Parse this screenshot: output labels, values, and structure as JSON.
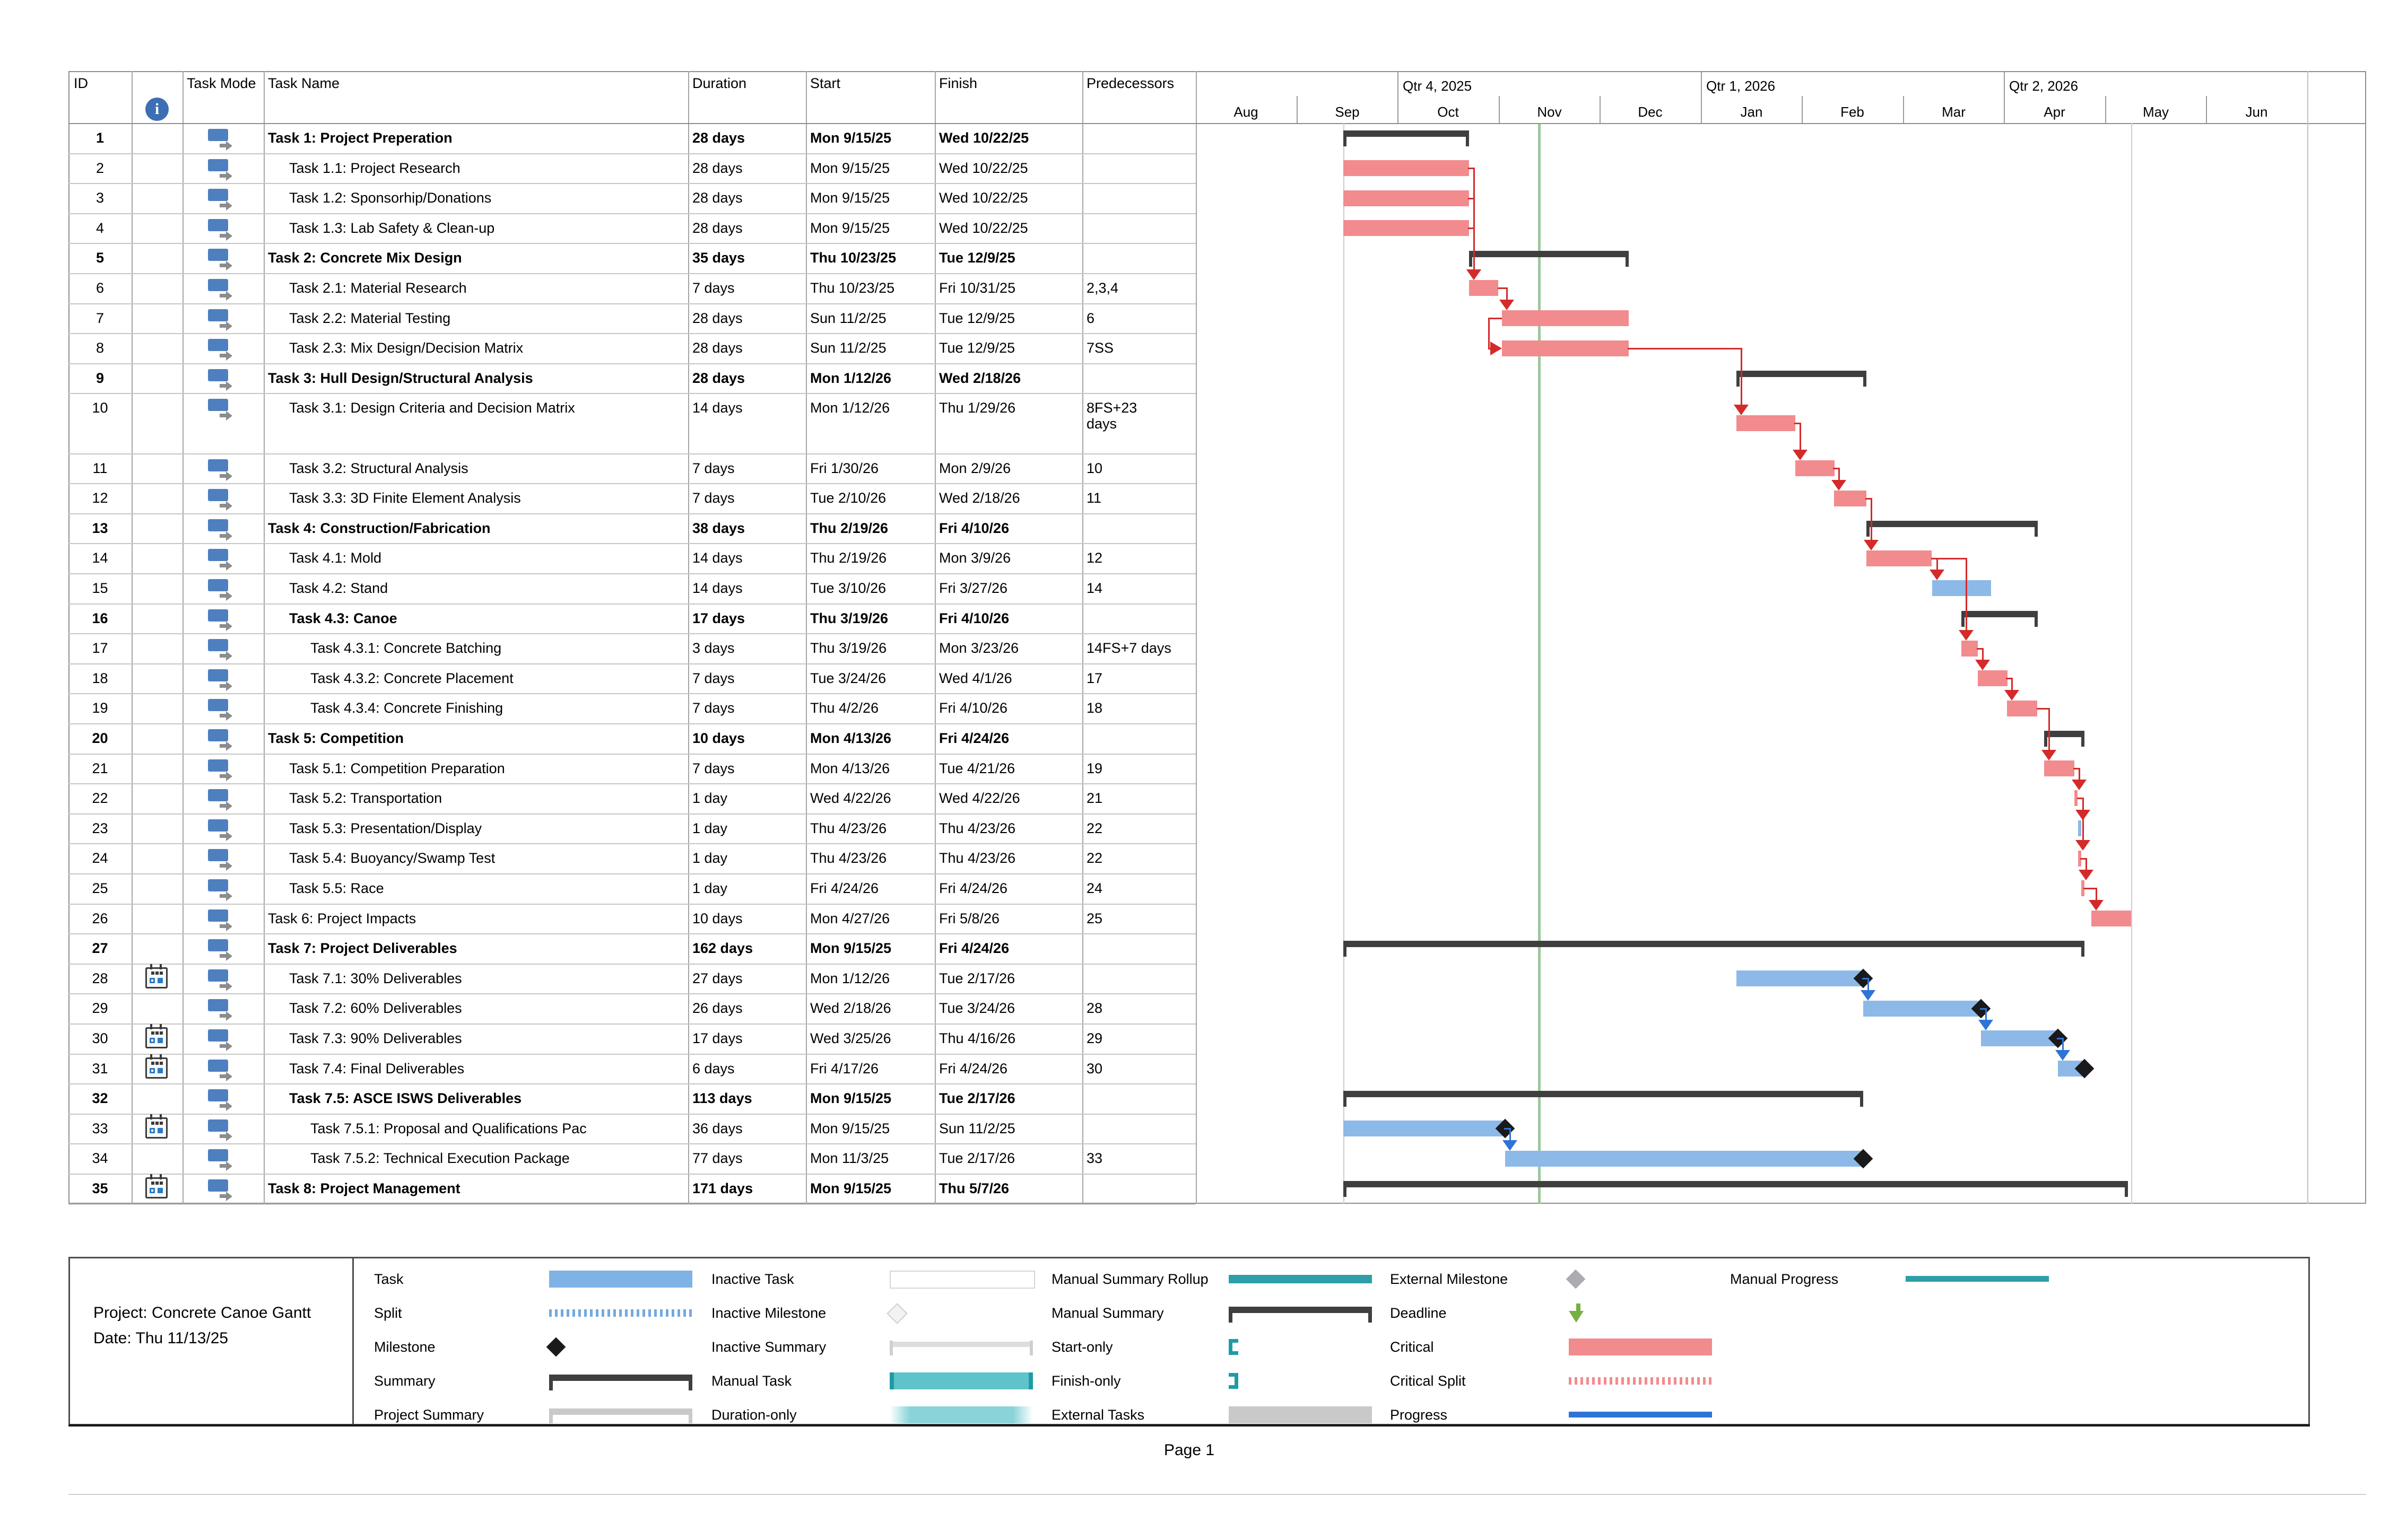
{
  "page": {
    "footer": "Page 1"
  },
  "project_info": {
    "line1": "Project: Concrete Canoe Gantt",
    "line2": "Date: Thu 11/13/25"
  },
  "table": {
    "headers": {
      "id": "ID",
      "info": "info-indicator-column",
      "task_mode": "Task Mode",
      "name": "Task Name",
      "duration": "Duration",
      "start": "Start",
      "finish": "Finish",
      "predecessors": "Predecessors"
    }
  },
  "timeline": {
    "months": [
      "Aug",
      "Sep",
      "Oct",
      "Nov",
      "Dec",
      "Jan",
      "Feb",
      "Mar",
      "Apr",
      "May",
      "Jun"
    ],
    "quarters": [
      {
        "label": "Qtr 4, 2025",
        "month_index": 2
      },
      {
        "label": "Qtr 1, 2026",
        "month_index": 5
      },
      {
        "label": "Qtr 2, 2026",
        "month_index": 8
      }
    ],
    "status_date": "11/13/25",
    "project_start": "9/15/25",
    "project_finish": "5/8/26"
  },
  "tasks": [
    {
      "id": 1,
      "name": "Task 1: Project Preperation",
      "indent": 0,
      "bold": true,
      "duration": "28 days",
      "start": "Mon 9/15/25",
      "finish": "Wed 10/22/25",
      "pred": "",
      "bar": "summary"
    },
    {
      "id": 2,
      "name": "Task 1.1: Project Research",
      "indent": 1,
      "bold": false,
      "duration": "28 days",
      "start": "Mon 9/15/25",
      "finish": "Wed 10/22/25",
      "pred": "",
      "bar": "critical"
    },
    {
      "id": 3,
      "name": "Task 1.2: Sponsorhip/Donations",
      "indent": 1,
      "bold": false,
      "duration": "28 days",
      "start": "Mon 9/15/25",
      "finish": "Wed 10/22/25",
      "pred": "",
      "bar": "critical"
    },
    {
      "id": 4,
      "name": "Task 1.3: Lab Safety & Clean-up",
      "indent": 1,
      "bold": false,
      "duration": "28 days",
      "start": "Mon 9/15/25",
      "finish": "Wed 10/22/25",
      "pred": "",
      "bar": "critical"
    },
    {
      "id": 5,
      "name": "Task 2: Concrete Mix Design",
      "indent": 0,
      "bold": true,
      "duration": "35 days",
      "start": "Thu 10/23/25",
      "finish": "Tue 12/9/25",
      "pred": "",
      "bar": "summary"
    },
    {
      "id": 6,
      "name": "Task 2.1: Material Research",
      "indent": 1,
      "bold": false,
      "duration": "7 days",
      "start": "Thu 10/23/25",
      "finish": "Fri 10/31/25",
      "pred": "2,3,4",
      "bar": "critical"
    },
    {
      "id": 7,
      "name": "Task 2.2: Material Testing",
      "indent": 1,
      "bold": false,
      "duration": "28 days",
      "start": "Sun 11/2/25",
      "finish": "Tue 12/9/25",
      "pred": "6",
      "bar": "critical"
    },
    {
      "id": 8,
      "name": "Task 2.3: Mix Design/Decision Matrix",
      "indent": 1,
      "bold": false,
      "duration": "28 days",
      "start": "Sun 11/2/25",
      "finish": "Tue 12/9/25",
      "pred": "7SS",
      "bar": "critical"
    },
    {
      "id": 9,
      "name": "Task 3: Hull Design/Structural Analysis",
      "indent": 0,
      "bold": true,
      "duration": "28 days",
      "start": "Mon 1/12/26",
      "finish": "Wed 2/18/26",
      "pred": "",
      "bar": "summary"
    },
    {
      "id": 10,
      "name": "Task 3.1: Design Criteria and Decision Matrix",
      "indent": 1,
      "bold": false,
      "duration": "14 days",
      "start": "Mon 1/12/26",
      "finish": "Thu 1/29/26",
      "pred": "8FS+23 days",
      "bar": "critical",
      "tall": true
    },
    {
      "id": 11,
      "name": "Task 3.2: Structural Analysis",
      "indent": 1,
      "bold": false,
      "duration": "7 days",
      "start": "Fri 1/30/26",
      "finish": "Mon 2/9/26",
      "pred": "10",
      "bar": "critical"
    },
    {
      "id": 12,
      "name": "Task 3.3: 3D Finite Element Analysis",
      "indent": 1,
      "bold": false,
      "duration": "7 days",
      "start": "Tue 2/10/26",
      "finish": "Wed 2/18/26",
      "pred": "11",
      "bar": "critical"
    },
    {
      "id": 13,
      "name": "Task 4: Construction/Fabrication",
      "indent": 0,
      "bold": true,
      "duration": "38 days",
      "start": "Thu 2/19/26",
      "finish": "Fri 4/10/26",
      "pred": "",
      "bar": "summary"
    },
    {
      "id": 14,
      "name": "Task 4.1: Mold",
      "indent": 1,
      "bold": false,
      "duration": "14 days",
      "start": "Thu 2/19/26",
      "finish": "Mon 3/9/26",
      "pred": "12",
      "bar": "critical"
    },
    {
      "id": 15,
      "name": "Task 4.2: Stand",
      "indent": 1,
      "bold": false,
      "duration": "14 days",
      "start": "Tue 3/10/26",
      "finish": "Fri 3/27/26",
      "pred": "14",
      "bar": "task"
    },
    {
      "id": 16,
      "name": "Task 4.3: Canoe",
      "indent": 1,
      "bold": true,
      "duration": "17 days",
      "start": "Thu 3/19/26",
      "finish": "Fri 4/10/26",
      "pred": "",
      "bar": "summary"
    },
    {
      "id": 17,
      "name": "Task 4.3.1: Concrete Batching",
      "indent": 2,
      "bold": false,
      "duration": "3 days",
      "start": "Thu 3/19/26",
      "finish": "Mon 3/23/26",
      "pred": "14FS+7 days",
      "bar": "critical"
    },
    {
      "id": 18,
      "name": "Task 4.3.2: Concrete Placement",
      "indent": 2,
      "bold": false,
      "duration": "7 days",
      "start": "Tue 3/24/26",
      "finish": "Wed 4/1/26",
      "pred": "17",
      "bar": "critical"
    },
    {
      "id": 19,
      "name": "Task 4.3.4: Concrete Finishing",
      "indent": 2,
      "bold": false,
      "duration": "7 days",
      "start": "Thu 4/2/26",
      "finish": "Fri 4/10/26",
      "pred": "18",
      "bar": "critical"
    },
    {
      "id": 20,
      "name": "Task 5: Competition",
      "indent": 0,
      "bold": true,
      "duration": "10 days",
      "start": "Mon 4/13/26",
      "finish": "Fri 4/24/26",
      "pred": "",
      "bar": "summary"
    },
    {
      "id": 21,
      "name": "Task 5.1: Competition Preparation",
      "indent": 1,
      "bold": false,
      "duration": "7 days",
      "start": "Mon 4/13/26",
      "finish": "Tue 4/21/26",
      "pred": "19",
      "bar": "critical"
    },
    {
      "id": 22,
      "name": "Task 5.2: Transportation",
      "indent": 1,
      "bold": false,
      "duration": "1 day",
      "start": "Wed 4/22/26",
      "finish": "Wed 4/22/26",
      "pred": "21",
      "bar": "critical"
    },
    {
      "id": 23,
      "name": "Task 5.3: Presentation/Display",
      "indent": 1,
      "bold": false,
      "duration": "1 day",
      "start": "Thu 4/23/26",
      "finish": "Thu 4/23/26",
      "pred": "22",
      "bar": "task"
    },
    {
      "id": 24,
      "name": "Task 5.4: Buoyancy/Swamp Test",
      "indent": 1,
      "bold": false,
      "duration": "1 day",
      "start": "Thu 4/23/26",
      "finish": "Thu 4/23/26",
      "pred": "22",
      "bar": "critical"
    },
    {
      "id": 25,
      "name": "Task 5.5: Race",
      "indent": 1,
      "bold": false,
      "duration": "1 day",
      "start": "Fri 4/24/26",
      "finish": "Fri 4/24/26",
      "pred": "24",
      "bar": "critical"
    },
    {
      "id": 26,
      "name": "Task 6: Project Impacts",
      "indent": 0,
      "bold": false,
      "duration": "10 days",
      "start": "Mon 4/27/26",
      "finish": "Fri 5/8/26",
      "pred": "25",
      "bar": "critical"
    },
    {
      "id": 27,
      "name": "Task 7: Project Deliverables",
      "indent": 0,
      "bold": true,
      "duration": "162 days",
      "start": "Mon 9/15/25",
      "finish": "Fri 4/24/26",
      "pred": "",
      "bar": "summary"
    },
    {
      "id": 28,
      "cal": true,
      "name": "Task 7.1: 30% Deliverables",
      "indent": 1,
      "bold": false,
      "duration": "27 days",
      "start": "Mon 1/12/26",
      "finish": "Tue 2/17/26",
      "pred": "",
      "bar": "task",
      "milestone": true
    },
    {
      "id": 29,
      "name": "Task 7.2: 60% Deliverables",
      "indent": 1,
      "bold": false,
      "duration": "26 days",
      "start": "Wed 2/18/26",
      "finish": "Tue 3/24/26",
      "pred": "28",
      "bar": "task",
      "milestone": true
    },
    {
      "id": 30,
      "cal": true,
      "name": "Task 7.3: 90% Deliverables",
      "indent": 1,
      "bold": false,
      "duration": "17 days",
      "start": "Wed 3/25/26",
      "finish": "Thu 4/16/26",
      "pred": "29",
      "bar": "task",
      "milestone": true
    },
    {
      "id": 31,
      "cal": true,
      "name": "Task 7.4: Final Deliverables",
      "indent": 1,
      "bold": false,
      "duration": "6 days",
      "start": "Fri 4/17/26",
      "finish": "Fri 4/24/26",
      "pred": "30",
      "bar": "task",
      "milestone": true
    },
    {
      "id": 32,
      "name": "Task 7.5: ASCE ISWS Deliverables",
      "indent": 1,
      "bold": true,
      "duration": "113 days",
      "start": "Mon 9/15/25",
      "finish": "Tue 2/17/26",
      "pred": "",
      "bar": "summary"
    },
    {
      "id": 33,
      "cal": true,
      "name": "Task 7.5.1: Proposal and Qualifications Pac",
      "indent": 2,
      "bold": false,
      "duration": "36 days",
      "start": "Mon 9/15/25",
      "finish": "Sun 11/2/25",
      "pred": "",
      "bar": "task",
      "milestone": true
    },
    {
      "id": 34,
      "name": "Task 7.5.2: Technical Execution Package",
      "indent": 2,
      "bold": false,
      "duration": "77 days",
      "start": "Mon 11/3/25",
      "finish": "Tue 2/17/26",
      "pred": "33",
      "bar": "task",
      "milestone": true
    },
    {
      "id": 35,
      "cal": true,
      "name": "Task 8: Project Management",
      "indent": 0,
      "bold": true,
      "duration": "171 days",
      "start": "Mon 9/15/25",
      "finish": "Thu 5/7/26",
      "pred": "",
      "bar": "summary"
    }
  ],
  "links": [
    {
      "from": 2,
      "to": 6,
      "color": "red"
    },
    {
      "from": 3,
      "to": 6,
      "color": "red"
    },
    {
      "from": 4,
      "to": 6,
      "color": "red"
    },
    {
      "from": 6,
      "to": 7,
      "color": "red"
    },
    {
      "from": 7,
      "to": 8,
      "color": "red",
      "type": "ss"
    },
    {
      "from": 8,
      "to": 10,
      "color": "red"
    },
    {
      "from": 10,
      "to": 11,
      "color": "red"
    },
    {
      "from": 11,
      "to": 12,
      "color": "red"
    },
    {
      "from": 12,
      "to": 14,
      "color": "red"
    },
    {
      "from": 14,
      "to": 15,
      "color": "red"
    },
    {
      "from": 14,
      "to": 17,
      "color": "red"
    },
    {
      "from": 17,
      "to": 18,
      "color": "red"
    },
    {
      "from": 18,
      "to": 19,
      "color": "red"
    },
    {
      "from": 19,
      "to": 21,
      "color": "red"
    },
    {
      "from": 21,
      "to": 22,
      "color": "red"
    },
    {
      "from": 22,
      "to": 23,
      "color": "red"
    },
    {
      "from": 22,
      "to": 24,
      "color": "red"
    },
    {
      "from": 24,
      "to": 25,
      "color": "red"
    },
    {
      "from": 25,
      "to": 26,
      "color": "red"
    },
    {
      "from": 28,
      "to": 29,
      "color": "blue"
    },
    {
      "from": 29,
      "to": 30,
      "color": "blue"
    },
    {
      "from": 30,
      "to": 31,
      "color": "blue"
    },
    {
      "from": 33,
      "to": 34,
      "color": "blue"
    }
  ],
  "legend": {
    "columns": [
      {
        "items": [
          {
            "label": "Task",
            "swatch": "task"
          },
          {
            "label": "Split",
            "swatch": "split"
          },
          {
            "label": "Milestone",
            "swatch": "milestone"
          },
          {
            "label": "Summary",
            "swatch": "summary"
          },
          {
            "label": "Project Summary",
            "swatch": "project-summary"
          }
        ]
      },
      {
        "items": [
          {
            "label": "Inactive Task",
            "swatch": "inactive-task"
          },
          {
            "label": "Inactive Milestone",
            "swatch": "inactive-milestone"
          },
          {
            "label": "Inactive Summary",
            "swatch": "inactive-summary"
          },
          {
            "label": "Manual Task",
            "swatch": "manual-task"
          },
          {
            "label": "Duration-only",
            "swatch": "duration-only"
          }
        ]
      },
      {
        "items": [
          {
            "label": "Manual Summary Rollup",
            "swatch": "manual-summary-rollup"
          },
          {
            "label": "Manual Summary",
            "swatch": "manual-summary"
          },
          {
            "label": "Start-only",
            "swatch": "start-only"
          },
          {
            "label": "Finish-only",
            "swatch": "finish-only"
          },
          {
            "label": "External Tasks",
            "swatch": "external-tasks"
          }
        ]
      },
      {
        "items": [
          {
            "label": "External Milestone",
            "swatch": "external-milestone"
          },
          {
            "label": "Deadline",
            "swatch": "deadline"
          },
          {
            "label": "Critical",
            "swatch": "critical"
          },
          {
            "label": "Critical Split",
            "swatch": "critical-split"
          },
          {
            "label": "Progress",
            "swatch": "progress"
          }
        ]
      },
      {
        "items": [
          {
            "label": "Manual Progress",
            "swatch": "manual-progress"
          }
        ]
      }
    ]
  },
  "colors": {
    "critical": "#F28B8E",
    "task_blue": "#8CB9E8",
    "summary": "#3F3F3F",
    "link_red": "#D42A2A",
    "link_blue": "#2E74D6",
    "status_line_green": "#8CBE8C",
    "teal": "#2F9EA8",
    "teal_light": "#5FC4CA",
    "deadline_green": "#76B042",
    "external_gray": "#C9C9C9",
    "milestone_black": "#1a1a1a"
  }
}
